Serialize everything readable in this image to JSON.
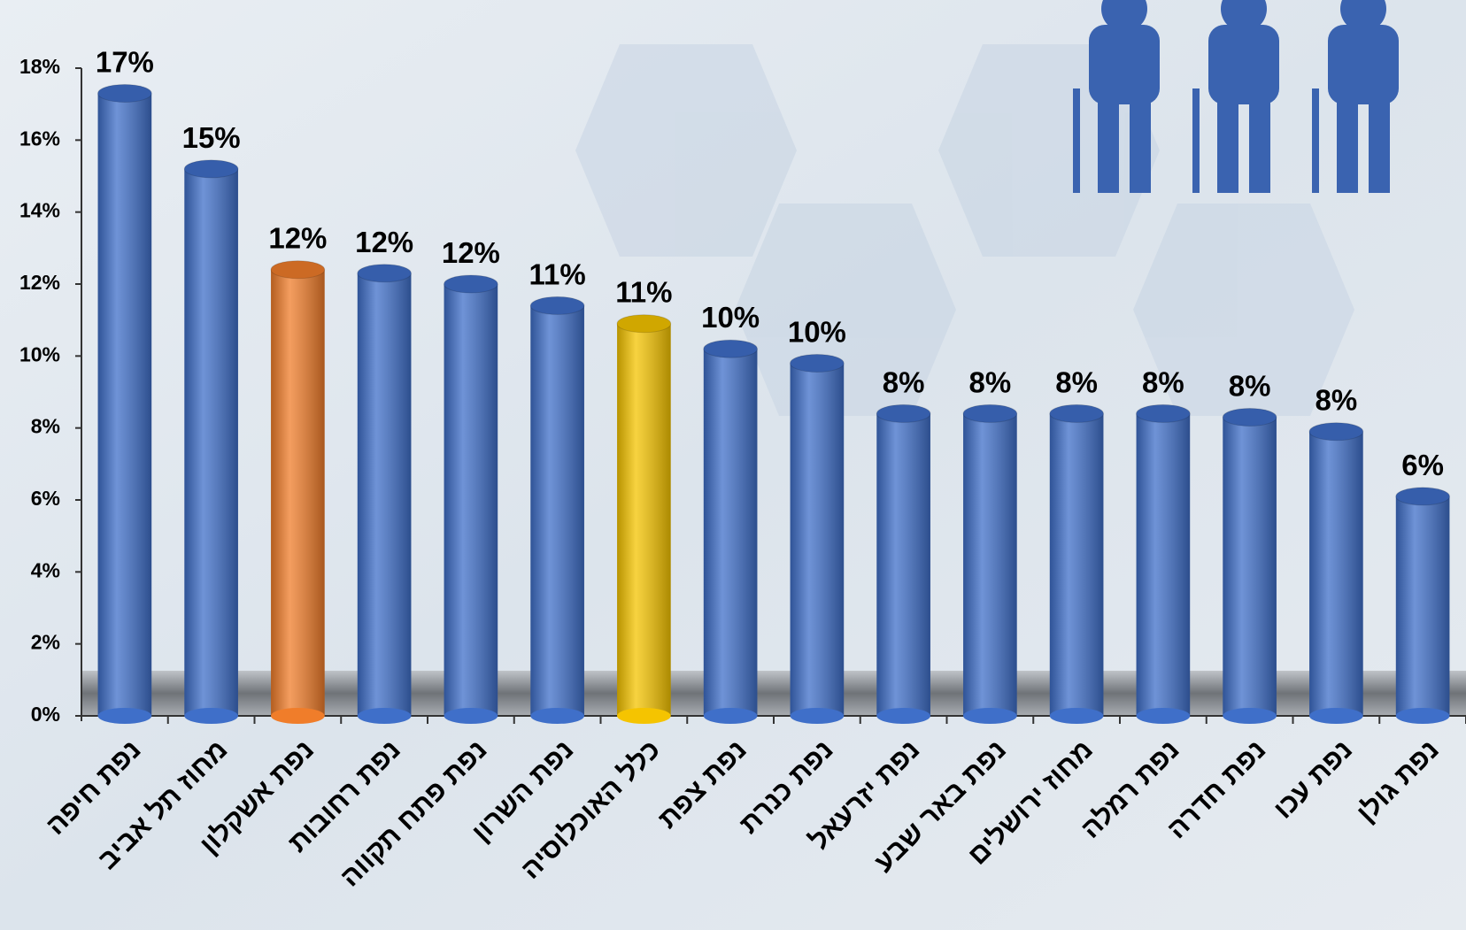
{
  "chart_data": {
    "type": "bar",
    "categories": [
      "נפת חיפה",
      "מחוז תל אביב",
      "נפת אשקלון",
      "נפת רחובות",
      "נפת פתח תקווה",
      "נפת השרון",
      "כלל האוכלוסיה",
      "נפת צפת",
      "נפת כנרת",
      "נפת יזרעאל",
      "נפת באר שבע",
      "מחוז ירושלים",
      "נפת רמלה",
      "נפת חדרה",
      "נפת עכו",
      "נפת גולן"
    ],
    "values": [
      17.3,
      15.2,
      12.4,
      12.3,
      12.0,
      11.4,
      10.9,
      10.2,
      9.8,
      8.4,
      8.4,
      8.4,
      8.4,
      8.3,
      7.9,
      6.1
    ],
    "value_labels": [
      "17%",
      "15%",
      "12%",
      "12%",
      "12%",
      "11%",
      "11%",
      "10%",
      "10%",
      "8%",
      "8%",
      "8%",
      "8%",
      "8%",
      "8%",
      "6%"
    ],
    "colors": [
      "#3f6fc9",
      "#3f6fc9",
      "#f07d2a",
      "#3f6fc9",
      "#3f6fc9",
      "#3f6fc9",
      "#f5c400",
      "#3f6fc9",
      "#3f6fc9",
      "#3f6fc9",
      "#3f6fc9",
      "#3f6fc9",
      "#3f6fc9",
      "#3f6fc9",
      "#3f6fc9",
      "#3f6fc9"
    ],
    "ylim": [
      0,
      18
    ],
    "yticks": [
      {
        "value": 0,
        "label": "0%"
      },
      {
        "value": 2,
        "label": "2%"
      },
      {
        "value": 4,
        "label": "4%"
      },
      {
        "value": 6,
        "label": "6%"
      },
      {
        "value": 8,
        "label": "8%"
      },
      {
        "value": 10,
        "label": "10%"
      },
      {
        "value": 12,
        "label": "12%"
      },
      {
        "value": 14,
        "label": "14%"
      },
      {
        "value": 16,
        "label": "16%"
      },
      {
        "value": 18,
        "label": "18%"
      }
    ]
  }
}
